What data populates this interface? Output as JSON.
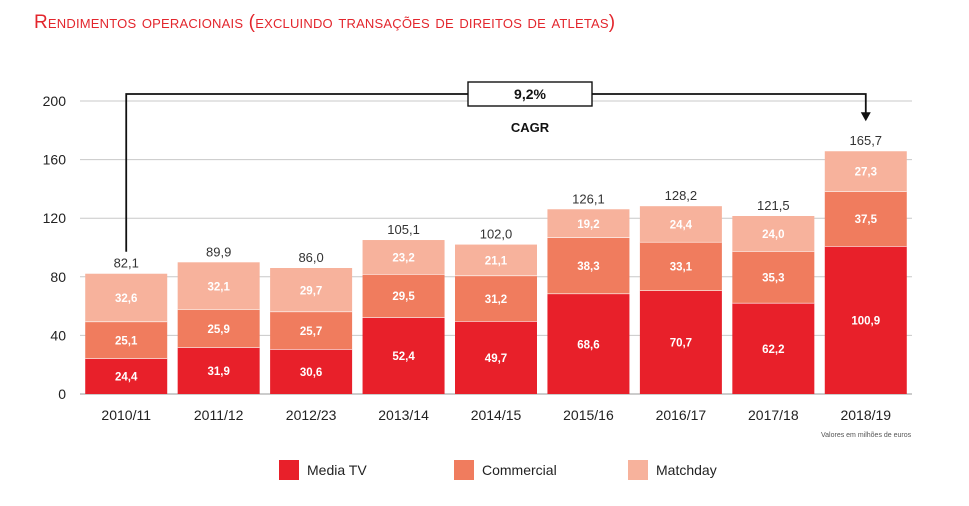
{
  "title": "Rendimentos operacionais (excluindo transações de direitos de atletas)",
  "note": "Valores em milhões de euros",
  "colors": {
    "media_tv": "#e8202a",
    "commercial": "#f07c5e",
    "matchday": "#f7b29c"
  },
  "chart_data": {
    "type": "bar",
    "stacked": true,
    "categories": [
      "2010/11",
      "2011/12",
      "2012/23",
      "2013/14",
      "2014/15",
      "2015/16",
      "2016/17",
      "2017/18",
      "2018/19"
    ],
    "series": [
      {
        "name": "Media TV",
        "values": [
          24.4,
          31.9,
          30.6,
          52.4,
          49.7,
          68.6,
          70.7,
          62.2,
          100.9
        ],
        "labels": [
          "24,4",
          "31,9",
          "30,6",
          "52,4",
          "49,7",
          "68,6",
          "70,7",
          "62,2",
          "100,9"
        ]
      },
      {
        "name": "Commercial",
        "values": [
          25.1,
          25.9,
          25.7,
          29.5,
          31.2,
          38.3,
          33.1,
          35.3,
          37.5
        ],
        "labels": [
          "25,1",
          "25,9",
          "25,7",
          "29,5",
          "31,2",
          "38,3",
          "33,1",
          "35,3",
          "37,5"
        ]
      },
      {
        "name": "Matchday",
        "values": [
          32.6,
          32.1,
          29.7,
          23.2,
          21.1,
          19.2,
          24.4,
          24.0,
          27.3
        ],
        "labels": [
          "32,6",
          "32,1",
          "29,7",
          "23,2",
          "21,1",
          "19,2",
          "24,4",
          "24,0",
          "27,3"
        ]
      }
    ],
    "totals": [
      82.1,
      89.9,
      86.0,
      105.1,
      102.0,
      126.1,
      128.2,
      121.5,
      165.7
    ],
    "total_labels": [
      "82,1",
      "89,9",
      "86,0",
      "105,1",
      "102,0",
      "126,1",
      "128,2",
      "121,5",
      "165,7"
    ],
    "yticks": [
      0,
      40,
      80,
      120,
      160,
      200
    ],
    "ylim": [
      0,
      200
    ],
    "grid": true,
    "annotation": {
      "value": "9,2%",
      "label": "CAGR",
      "from": "2010/11",
      "to": "2018/19"
    },
    "legend": {
      "position": "bottom",
      "items": [
        "Media TV",
        "Commercial",
        "Matchday"
      ]
    }
  }
}
